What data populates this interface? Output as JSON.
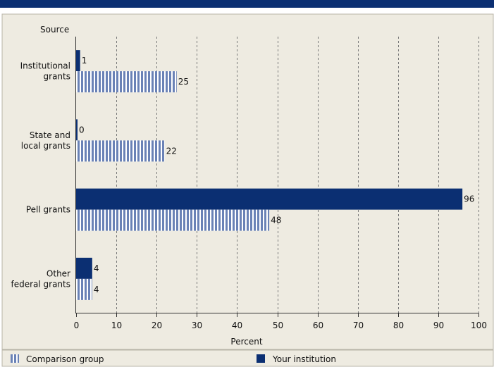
{
  "chart_data": {
    "type": "bar",
    "orientation": "horizontal",
    "y_axis_title": "Source",
    "xlabel": "Percent",
    "categories": [
      [
        "Institutional",
        "grants"
      ],
      [
        "State and",
        "local grants"
      ],
      [
        "Pell grants"
      ],
      [
        "Other",
        "federal grants"
      ]
    ],
    "series": [
      {
        "name": "Your institution",
        "values": [
          1,
          0,
          96,
          4
        ],
        "style": "solid",
        "color": "#0b2f72"
      },
      {
        "name": "Comparison group",
        "values": [
          25,
          22,
          48,
          4
        ],
        "style": "striped",
        "color": "#6a82b6"
      }
    ],
    "xlim": [
      0,
      100
    ],
    "xticks": [
      "0",
      "10",
      "20",
      "30",
      "40",
      "50",
      "60",
      "70",
      "80",
      "90",
      "100"
    ],
    "grid": "vertical dashed",
    "legend": [
      {
        "label": "Comparison group",
        "style": "striped"
      },
      {
        "label": "Your institution",
        "style": "solid"
      }
    ],
    "legend_placement": "bottom"
  },
  "colors": {
    "header_bar": "#0b2f72",
    "background": "#eeebe1",
    "solid_bar": "#0b2f72",
    "striped_bar": "#6a82b6"
  }
}
